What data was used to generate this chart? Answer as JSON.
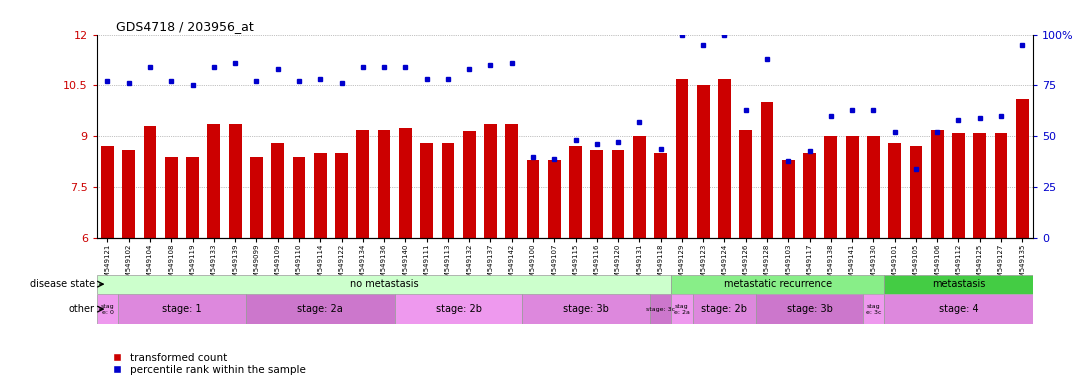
{
  "title": "GDS4718 / 203956_at",
  "samples": [
    "GSM549121",
    "GSM549102",
    "GSM549104",
    "GSM549108",
    "GSM549119",
    "GSM549133",
    "GSM549139",
    "GSM549099",
    "GSM549109",
    "GSM549110",
    "GSM549114",
    "GSM549122",
    "GSM549134",
    "GSM549136",
    "GSM549140",
    "GSM549111",
    "GSM549113",
    "GSM549132",
    "GSM549137",
    "GSM549142",
    "GSM549100",
    "GSM549107",
    "GSM549115",
    "GSM549116",
    "GSM549120",
    "GSM549131",
    "GSM549118",
    "GSM549129",
    "GSM549123",
    "GSM549124",
    "GSM549126",
    "GSM549128",
    "GSM549103",
    "GSM549117",
    "GSM549138",
    "GSM549141",
    "GSM549130",
    "GSM549101",
    "GSM549105",
    "GSM549106",
    "GSM549112",
    "GSM549125",
    "GSM549127",
    "GSM549135"
  ],
  "bar_values": [
    8.7,
    8.6,
    9.3,
    8.4,
    8.4,
    9.35,
    9.35,
    8.4,
    8.8,
    8.4,
    8.5,
    8.5,
    9.2,
    9.2,
    9.25,
    8.8,
    8.8,
    9.15,
    9.35,
    9.35,
    8.3,
    8.3,
    8.7,
    8.6,
    8.6,
    9.0,
    8.5,
    10.7,
    10.5,
    10.7,
    9.2,
    10.0,
    8.3,
    8.5,
    9.0,
    9.0,
    9.0,
    8.8,
    8.7,
    9.2,
    9.1,
    9.1,
    9.1,
    10.1
  ],
  "percentile_values": [
    77,
    76,
    84,
    77,
    75,
    84,
    86,
    77,
    83,
    77,
    78,
    76,
    84,
    84,
    84,
    78,
    78,
    83,
    85,
    86,
    40,
    39,
    48,
    46,
    47,
    57,
    44,
    100,
    95,
    100,
    63,
    88,
    38,
    43,
    60,
    63,
    63,
    52,
    34,
    52,
    58,
    59,
    60,
    95
  ],
  "ylim_left": [
    6,
    12
  ],
  "ylim_right": [
    0,
    100
  ],
  "yticks_left": [
    6,
    7.5,
    9,
    10.5,
    12
  ],
  "yticks_right": [
    0,
    25,
    50,
    75,
    100
  ],
  "bar_color": "#cc0000",
  "dot_color": "#0000cc",
  "grid_color": "#888888",
  "disease_state_groups": [
    {
      "label": "no metastasis",
      "start": 0,
      "end": 27,
      "color": "#ccffcc"
    },
    {
      "label": "metastatic recurrence",
      "start": 27,
      "end": 37,
      "color": "#88ee88"
    },
    {
      "label": "metastasis",
      "start": 37,
      "end": 44,
      "color": "#44cc44"
    }
  ],
  "stage_groups": [
    {
      "label": "stag\ne: 0",
      "start": 0,
      "end": 1,
      "color": "#ee99ee"
    },
    {
      "label": "stage: 1",
      "start": 1,
      "end": 7,
      "color": "#dd88dd"
    },
    {
      "label": "stage: 2a",
      "start": 7,
      "end": 14,
      "color": "#cc77cc"
    },
    {
      "label": "stage: 2b",
      "start": 14,
      "end": 20,
      "color": "#ee99ee"
    },
    {
      "label": "stage: 3b",
      "start": 20,
      "end": 26,
      "color": "#dd88dd"
    },
    {
      "label": "stage: 3c",
      "start": 26,
      "end": 27,
      "color": "#cc77cc"
    },
    {
      "label": "stag\ne: 2a",
      "start": 27,
      "end": 28,
      "color": "#ee99ee"
    },
    {
      "label": "stage: 2b",
      "start": 28,
      "end": 31,
      "color": "#dd88dd"
    },
    {
      "label": "stage: 3b",
      "start": 31,
      "end": 36,
      "color": "#cc77cc"
    },
    {
      "label": "stag\ne: 3c",
      "start": 36,
      "end": 37,
      "color": "#ee99ee"
    },
    {
      "label": "stage: 4",
      "start": 37,
      "end": 44,
      "color": "#dd88dd"
    }
  ],
  "legend_labels": [
    "transformed count",
    "percentile rank within the sample"
  ],
  "legend_colors": [
    "#cc0000",
    "#0000cc"
  ],
  "left_ylabel_color": "#cc0000",
  "right_ylabel_color": "#0000cc",
  "ticker_bg_color": "#dddddd",
  "chart_bg_color": "#ffffff"
}
